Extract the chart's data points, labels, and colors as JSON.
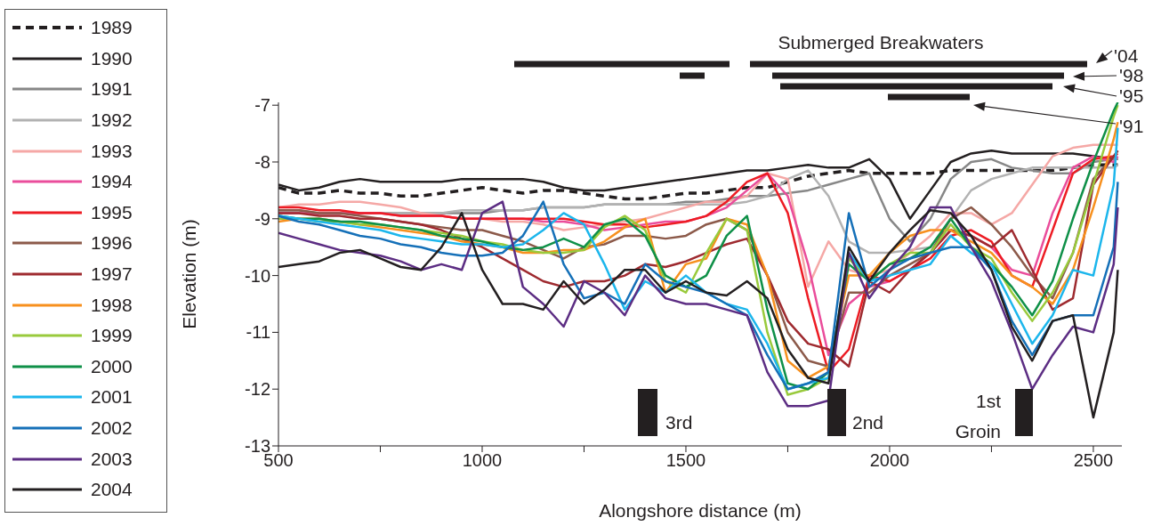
{
  "chart_data": {
    "type": "line",
    "xlabel": "Alongshore distance (m)",
    "ylabel": "Elevation (m)",
    "xlim": [
      500,
      2570
    ],
    "xticks": [
      500,
      {
        "value": 750,
        "label": null
      },
      1000,
      {
        "value": 1250,
        "label": null
      },
      1500,
      {
        "value": 1750,
        "label": null
      },
      2000,
      {
        "value": 2250,
        "label": null
      },
      2500
    ],
    "ylim": [
      -13,
      -6.95
    ],
    "yticks": [
      -13,
      -12,
      -11,
      -10,
      -9,
      -8,
      -7
    ],
    "legend": "left",
    "marker": "none",
    "line_style": "solid",
    "x": [
      500,
      550,
      600,
      650,
      700,
      750,
      800,
      850,
      900,
      950,
      1000,
      1050,
      1100,
      1150,
      1200,
      1250,
      1300,
      1350,
      1400,
      1450,
      1500,
      1550,
      1600,
      1650,
      1700,
      1750,
      1800,
      1850,
      1900,
      1950,
      2000,
      2050,
      2100,
      2150,
      2200,
      2250,
      2300,
      2350,
      2400,
      2450,
      2500,
      2550,
      2560
    ],
    "series": [
      {
        "name": "1989",
        "color": "#231f20",
        "line_style": "dashed",
        "values": [
          -8.45,
          -8.55,
          -8.55,
          -8.5,
          -8.55,
          -8.55,
          -8.6,
          -8.6,
          -8.55,
          -8.5,
          -8.45,
          -8.5,
          -8.55,
          -8.5,
          -8.5,
          -8.55,
          -8.6,
          -8.65,
          -8.65,
          -8.6,
          -8.55,
          -8.55,
          -8.5,
          -8.45,
          -8.45,
          -8.35,
          -8.25,
          -8.2,
          -8.15,
          -8.2,
          -8.2,
          -8.2,
          -8.2,
          -8.15,
          -8.15,
          -8.15,
          -8.15,
          -8.15,
          -8.15,
          -8.1,
          -8.05,
          -8.05,
          -8.05
        ]
      },
      {
        "name": "1990",
        "color": "#231f20",
        "values": [
          -8.4,
          -8.5,
          -8.45,
          -8.35,
          -8.3,
          -8.35,
          -8.35,
          -8.35,
          -8.35,
          -8.3,
          -8.3,
          -8.3,
          -8.3,
          -8.35,
          -8.45,
          -8.5,
          -8.5,
          -8.45,
          -8.4,
          -8.35,
          -8.3,
          -8.25,
          -8.2,
          -8.15,
          -8.15,
          -8.1,
          -8.05,
          -8.1,
          -8.1,
          -7.95,
          -8.3,
          -9.0,
          -8.5,
          -8.0,
          -7.85,
          -7.8,
          -7.85,
          -7.85,
          -7.85,
          -7.85,
          -7.9,
          -7.95,
          -7.95
        ]
      },
      {
        "name": "1991",
        "color": "#878787",
        "values": [
          -8.85,
          -8.85,
          -8.9,
          -8.9,
          -8.9,
          -8.9,
          -8.9,
          -8.9,
          -8.9,
          -8.9,
          -8.9,
          -8.85,
          -8.85,
          -8.8,
          -8.8,
          -8.8,
          -8.75,
          -8.75,
          -8.75,
          -8.75,
          -8.7,
          -8.7,
          -8.65,
          -8.6,
          -8.6,
          -8.55,
          -8.5,
          -8.4,
          -8.3,
          -8.2,
          -9.0,
          -9.4,
          -9.0,
          -8.3,
          -8.0,
          -7.95,
          -8.1,
          -8.15,
          -8.2,
          -8.2,
          -8.0,
          -7.95,
          -7.95
        ]
      },
      {
        "name": "1992",
        "color": "#b2b2b2",
        "values": [
          -8.9,
          -8.9,
          -8.9,
          -8.9,
          -8.9,
          -8.9,
          -8.9,
          -8.9,
          -8.9,
          -8.85,
          -8.85,
          -8.85,
          -8.85,
          -8.8,
          -8.8,
          -8.8,
          -8.75,
          -8.75,
          -8.75,
          -8.75,
          -8.75,
          -8.75,
          -8.75,
          -8.7,
          -8.6,
          -8.3,
          -8.15,
          -8.6,
          -9.4,
          -9.6,
          -9.6,
          -9.55,
          -9.5,
          -9.0,
          -8.5,
          -8.3,
          -8.2,
          -8.1,
          -8.1,
          -8.1,
          -8.1,
          -8.1,
          -8.05
        ]
      },
      {
        "name": "1993",
        "color": "#f5a8a6",
        "values": [
          -8.8,
          -8.75,
          -8.75,
          -8.7,
          -8.7,
          -8.75,
          -8.8,
          -8.9,
          -8.95,
          -9.0,
          -9.0,
          -9.05,
          -9.05,
          -9.1,
          -9.2,
          -9.15,
          -9.1,
          -9.05,
          -9.0,
          -8.9,
          -8.8,
          -8.7,
          -8.7,
          -8.6,
          -8.2,
          -8.3,
          -10.2,
          -9.4,
          -9.9,
          -10.0,
          -9.9,
          -9.6,
          -9.3,
          -8.9,
          -8.9,
          -9.1,
          -8.9,
          -8.4,
          -7.9,
          -7.75,
          -7.7,
          -7.7,
          -7.7
        ]
      },
      {
        "name": "1994",
        "color": "#ea4d9b",
        "values": [
          -8.9,
          -8.9,
          -8.9,
          -8.9,
          -8.9,
          -8.9,
          -8.95,
          -8.95,
          -8.95,
          -9.0,
          -9.0,
          -9.0,
          -9.0,
          -9.05,
          -9.05,
          -9.1,
          -9.2,
          -9.15,
          -9.1,
          -9.05,
          -9.05,
          -8.95,
          -8.8,
          -8.5,
          -8.2,
          -8.6,
          -9.8,
          -11.4,
          -10.5,
          -10.2,
          -10.1,
          -9.9,
          -9.6,
          -9.2,
          -9.3,
          -9.5,
          -9.9,
          -10.0,
          -8.9,
          -8.1,
          -7.9,
          -8.0,
          -7.9
        ]
      },
      {
        "name": "1995",
        "color": "#ed1c24",
        "values": [
          -8.8,
          -8.8,
          -8.85,
          -8.85,
          -8.9,
          -8.9,
          -8.95,
          -8.95,
          -8.95,
          -9.0,
          -9.0,
          -9.0,
          -9.0,
          -9.0,
          -9.0,
          -9.05,
          -9.1,
          -9.1,
          -9.15,
          -9.1,
          -9.05,
          -8.95,
          -8.7,
          -8.35,
          -8.2,
          -8.9,
          -10.4,
          -11.7,
          -11.3,
          -10.0,
          -10.1,
          -9.9,
          -9.7,
          -9.3,
          -9.2,
          -9.4,
          -10.0,
          -10.2,
          -9.2,
          -8.2,
          -7.95,
          -7.9,
          -7.85
        ]
      },
      {
        "name": "1996",
        "color": "#8c5a4a",
        "values": [
          -8.85,
          -8.85,
          -8.9,
          -8.9,
          -8.95,
          -9.0,
          -9.05,
          -9.1,
          -9.15,
          -9.2,
          -9.2,
          -9.3,
          -9.4,
          -9.55,
          -9.7,
          -9.5,
          -9.45,
          -9.3,
          -9.3,
          -9.35,
          -9.3,
          -9.1,
          -9.0,
          -9.2,
          -10.0,
          -11.0,
          -11.5,
          -11.6,
          -10.3,
          -10.3,
          -10.0,
          -9.8,
          -9.6,
          -9.0,
          -8.8,
          -9.1,
          -9.5,
          -10.0,
          -10.4,
          -9.6,
          -8.3,
          -7.9,
          -7.8
        ]
      },
      {
        "name": "1997",
        "color": "#9e2a2f",
        "values": [
          -8.9,
          -8.9,
          -8.95,
          -8.95,
          -9.0,
          -9.0,
          -9.05,
          -9.1,
          -9.2,
          -9.35,
          -9.5,
          -9.7,
          -9.9,
          -10.1,
          -10.2,
          -10.1,
          -10.1,
          -10.0,
          -9.8,
          -9.85,
          -9.75,
          -9.6,
          -9.45,
          -9.35,
          -10.0,
          -10.8,
          -11.2,
          -11.3,
          -11.6,
          -10.1,
          -10.3,
          -9.9,
          -9.6,
          -9.2,
          -9.3,
          -9.5,
          -9.2,
          -9.9,
          -10.6,
          -10.4,
          -8.4,
          -7.9,
          -7.8
        ]
      },
      {
        "name": "1998",
        "color": "#f7901e",
        "values": [
          -9.05,
          -9.0,
          -9.0,
          -9.05,
          -9.1,
          -9.15,
          -9.2,
          -9.25,
          -9.3,
          -9.4,
          -9.45,
          -9.5,
          -9.6,
          -9.6,
          -9.55,
          -9.55,
          -9.4,
          -9.15,
          -9.0,
          -10.3,
          -9.8,
          -9.7,
          -9.0,
          -9.1,
          -10.0,
          -11.5,
          -11.8,
          -11.6,
          -10.0,
          -10.0,
          -9.6,
          -9.3,
          -9.2,
          -9.2,
          -9.4,
          -9.6,
          -10.0,
          -10.2,
          -10.5,
          -9.9,
          -8.8,
          -7.6,
          -7.3
        ]
      },
      {
        "name": "1999",
        "color": "#99ca3c",
        "values": [
          -9.0,
          -9.0,
          -9.05,
          -9.05,
          -9.1,
          -9.1,
          -9.15,
          -9.2,
          -9.25,
          -9.3,
          -9.4,
          -9.45,
          -9.55,
          -9.6,
          -9.6,
          -9.55,
          -9.15,
          -8.95,
          -9.2,
          -10.1,
          -10.3,
          -9.6,
          -9.0,
          -9.2,
          -11.0,
          -12.1,
          -12.0,
          -11.8,
          -9.7,
          -10.1,
          -9.8,
          -9.6,
          -9.6,
          -9.1,
          -9.5,
          -9.7,
          -10.3,
          -10.8,
          -10.3,
          -9.6,
          -8.4,
          -7.2,
          -7.0
        ]
      },
      {
        "name": "2000",
        "color": "#0f9048",
        "values": [
          -8.95,
          -9.0,
          -9.0,
          -9.05,
          -9.05,
          -9.1,
          -9.15,
          -9.2,
          -9.3,
          -9.35,
          -9.4,
          -9.5,
          -9.55,
          -9.5,
          -9.35,
          -9.5,
          -9.1,
          -9.0,
          -9.3,
          -10.0,
          -10.2,
          -10.0,
          -9.3,
          -8.95,
          -10.6,
          -11.9,
          -12.0,
          -11.7,
          -9.8,
          -10.1,
          -9.8,
          -9.7,
          -9.5,
          -9.0,
          -9.5,
          -9.8,
          -10.2,
          -10.7,
          -10.1,
          -9.0,
          -8.0,
          -7.1,
          -6.95
        ]
      },
      {
        "name": "2001",
        "color": "#1cb6ec",
        "values": [
          -8.95,
          -9.0,
          -9.05,
          -9.1,
          -9.15,
          -9.2,
          -9.3,
          -9.35,
          -9.4,
          -9.45,
          -9.45,
          -9.5,
          -9.45,
          -9.2,
          -8.9,
          -9.1,
          -9.8,
          -10.6,
          -10.1,
          -10.3,
          -10.0,
          -10.3,
          -10.5,
          -10.6,
          -11.2,
          -12.0,
          -11.9,
          -11.8,
          -9.6,
          -10.1,
          -10.0,
          -9.9,
          -9.8,
          -9.3,
          -9.6,
          -9.8,
          -10.5,
          -11.2,
          -10.7,
          -9.9,
          -10.0,
          -8.4,
          -7.4
        ]
      },
      {
        "name": "2002",
        "color": "#1570b8",
        "values": [
          -8.95,
          -9.05,
          -9.1,
          -9.2,
          -9.3,
          -9.35,
          -9.45,
          -9.5,
          -9.6,
          -9.65,
          -9.65,
          -9.6,
          -9.3,
          -8.7,
          -9.8,
          -10.4,
          -10.3,
          -10.5,
          -9.8,
          -10.1,
          -10.2,
          -10.3,
          -10.5,
          -10.7,
          -11.4,
          -12.0,
          -11.9,
          -11.7,
          -8.9,
          -10.2,
          -9.9,
          -9.7,
          -9.6,
          -9.5,
          -9.5,
          -9.9,
          -10.8,
          -11.4,
          -10.8,
          -10.7,
          -10.7,
          -9.5,
          -8.35
        ]
      },
      {
        "name": "2003",
        "color": "#5c2d83",
        "values": [
          -9.25,
          -9.35,
          -9.45,
          -9.55,
          -9.6,
          -9.65,
          -9.75,
          -9.9,
          -9.8,
          -9.9,
          -8.9,
          -8.7,
          -10.2,
          -10.5,
          -10.9,
          -10.1,
          -10.3,
          -10.7,
          -10.0,
          -10.4,
          -10.5,
          -10.5,
          -10.6,
          -10.7,
          -11.7,
          -12.3,
          -12.3,
          -12.2,
          -9.6,
          -10.4,
          -9.9,
          -9.5,
          -8.8,
          -8.8,
          -9.5,
          -10.1,
          -11.0,
          -12.0,
          -11.4,
          -10.9,
          -11.0,
          -9.8,
          -8.8
        ]
      },
      {
        "name": "2004",
        "color": "#231f20",
        "values": [
          -9.85,
          -9.8,
          -9.75,
          -9.6,
          -9.55,
          -9.7,
          -9.85,
          -9.9,
          -9.5,
          -8.9,
          -9.9,
          -10.5,
          -10.5,
          -10.6,
          -10.1,
          -10.5,
          -10.25,
          -9.9,
          -9.9,
          -10.3,
          -10.1,
          -10.3,
          -10.35,
          -10.1,
          -10.4,
          -11.3,
          -11.8,
          -11.9,
          -9.5,
          -10.1,
          -9.6,
          -9.2,
          -8.85,
          -8.9,
          -9.3,
          -9.9,
          -10.9,
          -11.5,
          -10.8,
          -10.7,
          -12.5,
          -11.0,
          -9.9
        ]
      }
    ],
    "annotations": [
      "Submerged Breakwaters",
      "'04",
      "'98",
      "'95",
      "'91",
      "3rd",
      "2nd",
      "1st Groin"
    ]
  }
}
